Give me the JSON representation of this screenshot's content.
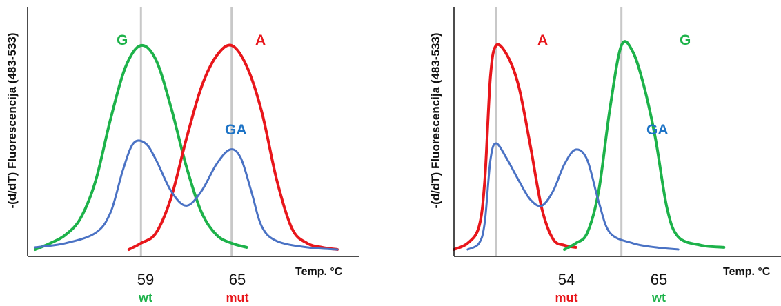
{
  "colors": {
    "G": "#1db24a",
    "A": "#e8161b",
    "GA": "#4a72c4",
    "marker": "#c8c8c8",
    "axis": "#111111"
  },
  "chart_data": [
    {
      "type": "line",
      "ylabel": "-(d/dT) Fluorescencija (483-533)",
      "xlabel": "Temp. °C",
      "x_ticks": [
        {
          "value": 59,
          "label": "59",
          "status": "wt",
          "status_color": "G"
        },
        {
          "value": 65,
          "label": "65",
          "status": "mut",
          "status_color": "A"
        }
      ],
      "xlim": [
        51.5,
        72.5
      ],
      "ylim": [
        0,
        1.02
      ],
      "series": [
        {
          "name": "G",
          "color": "G",
          "points": [
            [
              52,
              0.02
            ],
            [
              53,
              0.05
            ],
            [
              54,
              0.09
            ],
            [
              55,
              0.17
            ],
            [
              56,
              0.35
            ],
            [
              57,
              0.65
            ],
            [
              58,
              0.9
            ],
            [
              59,
              1.0
            ],
            [
              60,
              0.93
            ],
            [
              61,
              0.7
            ],
            [
              62,
              0.42
            ],
            [
              63,
              0.2
            ],
            [
              64,
              0.09
            ],
            [
              65,
              0.05
            ],
            [
              66,
              0.03
            ]
          ]
        },
        {
          "name": "A",
          "color": "A",
          "points": [
            [
              58.2,
              0.02
            ],
            [
              59,
              0.05
            ],
            [
              60,
              0.1
            ],
            [
              61,
              0.27
            ],
            [
              62,
              0.55
            ],
            [
              63,
              0.8
            ],
            [
              64,
              0.95
            ],
            [
              65,
              1.0
            ],
            [
              66,
              0.9
            ],
            [
              67,
              0.68
            ],
            [
              68,
              0.35
            ],
            [
              69,
              0.12
            ],
            [
              70,
              0.05
            ],
            [
              71,
              0.03
            ],
            [
              72,
              0.02
            ]
          ]
        },
        {
          "name": "GA",
          "color": "GA",
          "points": [
            [
              52,
              0.03
            ],
            [
              54,
              0.05
            ],
            [
              56,
              0.1
            ],
            [
              57,
              0.2
            ],
            [
              57.8,
              0.4
            ],
            [
              58.5,
              0.53
            ],
            [
              59.3,
              0.53
            ],
            [
              60,
              0.45
            ],
            [
              61,
              0.3
            ],
            [
              62,
              0.23
            ],
            [
              63,
              0.3
            ],
            [
              64,
              0.43
            ],
            [
              64.9,
              0.5
            ],
            [
              65.6,
              0.46
            ],
            [
              66.3,
              0.3
            ],
            [
              67,
              0.13
            ],
            [
              68,
              0.06
            ],
            [
              70,
              0.03
            ],
            [
              72,
              0.02
            ]
          ]
        }
      ],
      "curve_labels": [
        {
          "series": "G",
          "text": "G"
        },
        {
          "series": "A",
          "text": "A"
        },
        {
          "series": "GA",
          "text": "GA"
        }
      ]
    },
    {
      "type": "line",
      "ylabel": "-(d/dT) Fluorescencija (483-533)",
      "xlabel": "Temp. °C",
      "x_ticks": [
        {
          "value": 54,
          "label": "54",
          "status": "mut",
          "status_color": "A"
        },
        {
          "value": 65,
          "label": "65",
          "status": "wt",
          "status_color": "G"
        }
      ],
      "xlim": [
        50.3,
        77.8
      ],
      "ylim": [
        0,
        1.02
      ],
      "series": [
        {
          "name": "A",
          "color": "A",
          "points": [
            [
              50.3,
              0.02
            ],
            [
              51.5,
              0.05
            ],
            [
              52.5,
              0.13
            ],
            [
              53,
              0.35
            ],
            [
              53.5,
              0.85
            ],
            [
              54,
              1.0
            ],
            [
              55,
              0.95
            ],
            [
              56,
              0.8
            ],
            [
              57,
              0.52
            ],
            [
              58,
              0.22
            ],
            [
              59,
              0.07
            ],
            [
              60,
              0.04
            ],
            [
              61,
              0.03
            ]
          ]
        },
        {
          "name": "G",
          "color": "G",
          "points": [
            [
              60,
              0.02
            ],
            [
              61,
              0.05
            ],
            [
              62,
              0.1
            ],
            [
              63,
              0.3
            ],
            [
              64,
              0.7
            ],
            [
              65,
              1.0
            ],
            [
              66,
              0.97
            ],
            [
              67,
              0.8
            ],
            [
              68,
              0.55
            ],
            [
              69,
              0.22
            ],
            [
              70,
              0.08
            ],
            [
              72,
              0.04
            ],
            [
              74,
              0.03
            ]
          ]
        },
        {
          "name": "GA",
          "color": "GA",
          "points": [
            [
              51.5,
              0.02
            ],
            [
              52.5,
              0.05
            ],
            [
              53,
              0.15
            ],
            [
              53.5,
              0.45
            ],
            [
              54,
              0.53
            ],
            [
              55,
              0.45
            ],
            [
              56,
              0.35
            ],
            [
              57,
              0.26
            ],
            [
              58,
              0.23
            ],
            [
              59,
              0.3
            ],
            [
              60,
              0.43
            ],
            [
              61,
              0.5
            ],
            [
              62,
              0.45
            ],
            [
              63,
              0.25
            ],
            [
              64,
              0.1
            ],
            [
              66,
              0.05
            ],
            [
              68,
              0.03
            ],
            [
              70,
              0.02
            ]
          ]
        }
      ],
      "curve_labels": [
        {
          "series": "A",
          "text": "A"
        },
        {
          "series": "G",
          "text": "G"
        },
        {
          "series": "GA",
          "text": "GA"
        }
      ]
    }
  ]
}
